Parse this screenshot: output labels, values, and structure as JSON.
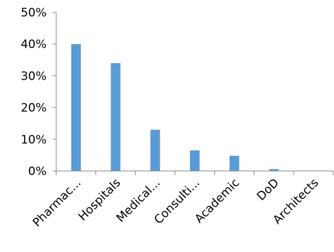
{
  "chart_data": {
    "type": "bar",
    "categories": [
      "Pharmac...",
      "Hospitals",
      "Medical...",
      "Consulti...",
      "Academic",
      "DoD",
      "Architects"
    ],
    "values": [
      40,
      34,
      13,
      6.5,
      4.8,
      0.6,
      0
    ],
    "y_tick_labels": [
      "0%",
      "10%",
      "20%",
      "30%",
      "40%",
      "50%"
    ],
    "ylim": [
      0,
      50
    ],
    "grid": false,
    "legend": "none",
    "bar_color": "#5B9BD5"
  }
}
